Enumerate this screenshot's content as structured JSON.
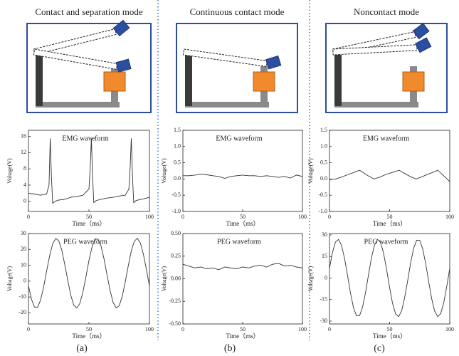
{
  "panels": [
    {
      "title": "Contact and separation mode",
      "label": "(a)"
    },
    {
      "title": "Continuous contact mode",
      "label": "(b)"
    },
    {
      "title": "Noncontact mode",
      "label": "(c)"
    }
  ],
  "chart_data": [
    {
      "type": "line",
      "title": "EMG waveform",
      "x_label": "Time（ms）",
      "y_label": "Voltage(V)",
      "color": "#333333",
      "x": [
        0,
        5,
        10,
        15,
        17,
        18,
        19,
        20,
        22,
        25,
        30,
        35,
        40,
        45,
        50,
        51,
        52,
        53,
        54,
        56,
        60,
        65,
        70,
        75,
        80,
        83,
        84,
        85,
        86,
        87,
        89,
        95,
        100
      ],
      "values": [
        2,
        1.8,
        1.5,
        1.8,
        4,
        15.5,
        6,
        -0.5,
        0,
        0.3,
        0.5,
        1,
        1.2,
        1.5,
        3,
        8,
        15.5,
        6,
        -0.3,
        0.2,
        0.5,
        0.8,
        1,
        1.3,
        1.5,
        3,
        8,
        15.5,
        6,
        -0.3,
        0.2,
        0.6,
        1
      ],
      "xlim": [
        0,
        100
      ],
      "xticks": [
        0,
        50,
        100
      ],
      "ylim": [
        -2.5,
        17.5
      ],
      "yticks": [
        0,
        4,
        8,
        12,
        16
      ]
    },
    {
      "type": "line",
      "title": "PEG waveform",
      "x_label": "Time（ms）",
      "y_label": "Voltage(V)",
      "color": "#333333",
      "x": [
        0,
        2.5,
        5,
        7.5,
        10,
        12.5,
        15,
        17.5,
        20,
        22.5,
        25,
        27.5,
        30,
        32.5,
        35,
        37.5,
        40,
        42.5,
        45,
        47.5,
        50,
        52.5,
        55,
        57.5,
        60,
        62.5,
        65,
        67.5,
        70,
        72.5,
        75,
        77.5,
        80,
        82.5,
        85,
        87.5,
        90,
        92.5,
        95,
        97.5,
        100
      ],
      "values": [
        -3,
        -11.5,
        -16.3,
        -16.5,
        -12,
        -3.8,
        6.3,
        16.1,
        23.5,
        26.9,
        25.5,
        19.6,
        10.5,
        0.3,
        -9,
        -15.2,
        -17,
        -14,
        -6.9,
        2.8,
        13,
        21.5,
        26.3,
        26.5,
        22,
        13.8,
        3.7,
        -6.1,
        -13.5,
        -16.9,
        -15.5,
        -9.6,
        -0.5,
        9.7,
        19,
        25.2,
        27,
        24,
        16.9,
        7.2,
        -3
      ],
      "xlim": [
        0,
        100
      ],
      "xticks": [
        0,
        50,
        100
      ],
      "ylim": [
        -27,
        30
      ],
      "yticks": [
        -20,
        -10,
        0,
        10,
        20,
        30
      ]
    },
    {
      "type": "line",
      "title": "EMG waveform",
      "x_label": "Time（ms）",
      "y_label": "Voltage(V)",
      "color": "#333333",
      "x": [
        0,
        5,
        10,
        15,
        20,
        25,
        30,
        35,
        40,
        45,
        50,
        55,
        60,
        65,
        70,
        75,
        80,
        85,
        90,
        95,
        100
      ],
      "values": [
        0.1,
        0.1,
        0.12,
        0.15,
        0.13,
        0.1,
        0.08,
        0.02,
        0.08,
        0.1,
        0.12,
        0.1,
        0.1,
        0.08,
        0.1,
        0.08,
        0.05,
        0.08,
        0.03,
        0.12,
        0.08
      ],
      "xlim": [
        0,
        100
      ],
      "xticks": [
        0,
        50,
        100
      ],
      "ylim": [
        -1,
        1.5
      ],
      "yticks": [
        {
          "value": -1,
          "label": "-1.0"
        },
        -0.5,
        {
          "value": 0,
          "label": "0.0"
        },
        0.5,
        {
          "value": 1,
          "label": "1.0"
        },
        1.5
      ]
    },
    {
      "type": "line",
      "title": "PEG waveform",
      "x_label": "Time（ms）",
      "y_label": "Voltage(V)",
      "color": "#333333",
      "x": [
        0,
        5,
        10,
        15,
        20,
        25,
        30,
        35,
        40,
        45,
        50,
        55,
        60,
        65,
        70,
        75,
        80,
        85,
        90,
        95,
        100
      ],
      "values": [
        0.16,
        0.14,
        0.12,
        0.13,
        0.11,
        0.12,
        0.1,
        0.13,
        0.12,
        0.11,
        0.13,
        0.12,
        0.14,
        0.15,
        0.13,
        0.16,
        0.17,
        0.14,
        0.15,
        0.13,
        0.12
      ],
      "xlim": [
        0,
        100
      ],
      "xticks": [
        0,
        50,
        100
      ],
      "ylim": [
        -0.5,
        0.5
      ],
      "yticks": [
        {
          "value": -0.5,
          "label": "-0.50"
        },
        -0.25,
        {
          "value": 0,
          "label": "0.00"
        },
        0.25,
        {
          "value": 0.5,
          "label": "0.50"
        }
      ]
    },
    {
      "type": "line",
      "title": "EMG waveform",
      "x_label": "Time（ms）",
      "y_label": "Voltage(V)",
      "color": "#333333",
      "x": [
        0,
        5,
        10,
        15,
        20,
        25,
        28,
        32,
        37,
        42,
        47,
        52,
        58,
        62,
        67,
        72,
        77,
        82,
        87,
        90,
        95,
        100
      ],
      "values": [
        -0.02,
        0,
        0.06,
        0.13,
        0.2,
        0.27,
        0.2,
        0.1,
        0,
        0.06,
        0.14,
        0.2,
        0.27,
        0.18,
        0.08,
        0,
        0.07,
        0.15,
        0.22,
        0.27,
        0.1,
        -0.08
      ],
      "xlim": [
        0,
        100
      ],
      "xticks": [
        0,
        50,
        100
      ],
      "ylim": [
        -1,
        1.5
      ],
      "yticks": [
        {
          "value": -1,
          "label": "-1.0"
        },
        -0.5,
        {
          "value": 0,
          "label": "0.0"
        },
        0.5,
        {
          "value": 1,
          "label": "1.0"
        },
        1.5
      ]
    },
    {
      "type": "line",
      "title": "PEG waveform",
      "x_label": "Time（ms）",
      "y_label": "Voltage(V)",
      "color": "#333333",
      "x": [
        0,
        2.5,
        5,
        7.5,
        10,
        12.5,
        15,
        17.5,
        20,
        22.5,
        25,
        27.5,
        30,
        32.5,
        35,
        37.5,
        40,
        42.5,
        45,
        47.5,
        50,
        52.5,
        55,
        57.5,
        60,
        62.5,
        65,
        67.5,
        70,
        72.5,
        75,
        77.5,
        80,
        82.5,
        85,
        87.5,
        90,
        92.5,
        95,
        97.5,
        100
      ],
      "values": [
        6.7,
        17.8,
        25.1,
        26.9,
        22.8,
        13.8,
        1.8,
        -10.7,
        -20.8,
        -26.4,
        -26.2,
        -20.3,
        -10,
        2.5,
        14.4,
        23.2,
        26.9,
        24.8,
        17.3,
        5.9,
        -6.7,
        -17.8,
        -25.1,
        -26.9,
        -22.8,
        -13.8,
        -1.8,
        10.7,
        20.8,
        26.4,
        26.2,
        20.3,
        10,
        -2.5,
        -14.4,
        -23.2,
        -26.9,
        -24.8,
        -17.3,
        -5.9,
        6.7
      ],
      "xlim": [
        0,
        100
      ],
      "xticks": [
        0,
        50,
        100
      ],
      "ylim": [
        -32,
        31
      ],
      "yticks": [
        -30,
        -15,
        0,
        15,
        30
      ]
    }
  ]
}
